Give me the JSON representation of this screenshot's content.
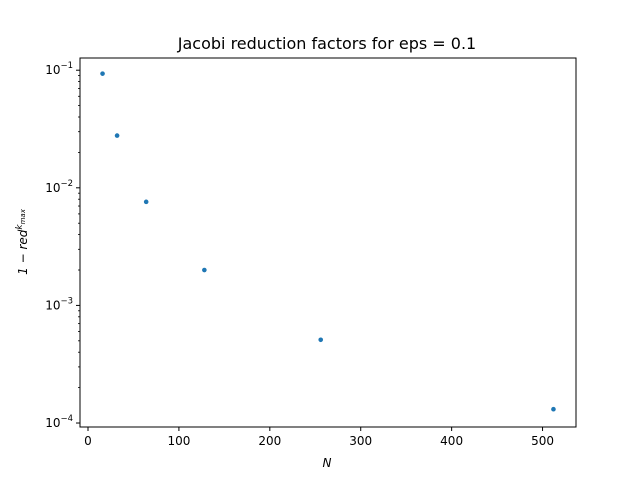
{
  "chart_data": {
    "type": "scatter",
    "title": "Jacobi reduction factors for eps = 0.1",
    "xlabel": "N",
    "ylabel": {
      "base": "1 − red",
      "sup": "k",
      "sub": "max"
    },
    "x_ticks": [
      0,
      100,
      200,
      300,
      400,
      500
    ],
    "x_tick_labels": [
      "0",
      "100",
      "200",
      "300",
      "400",
      "500"
    ],
    "xlim": [
      -8.8,
      536.8
    ],
    "y_scale": "log",
    "ylim": [
      9.25e-05,
      0.127
    ],
    "y_major_ticks": [
      {
        "value": 0.1,
        "base": "10",
        "exp": "−1"
      },
      {
        "value": 0.01,
        "base": "10",
        "exp": "−2"
      },
      {
        "value": 0.001,
        "base": "10",
        "exp": "−3"
      },
      {
        "value": 0.0001,
        "base": "10",
        "exp": "−4"
      }
    ],
    "grid": false,
    "color": "#1f77b4",
    "points": [
      {
        "x": 16,
        "y": 0.0935
      },
      {
        "x": 32,
        "y": 0.0278
      },
      {
        "x": 64,
        "y": 0.0076
      },
      {
        "x": 128,
        "y": 0.002
      },
      {
        "x": 256,
        "y": 0.00051
      },
      {
        "x": 512,
        "y": 0.000131
      }
    ]
  }
}
